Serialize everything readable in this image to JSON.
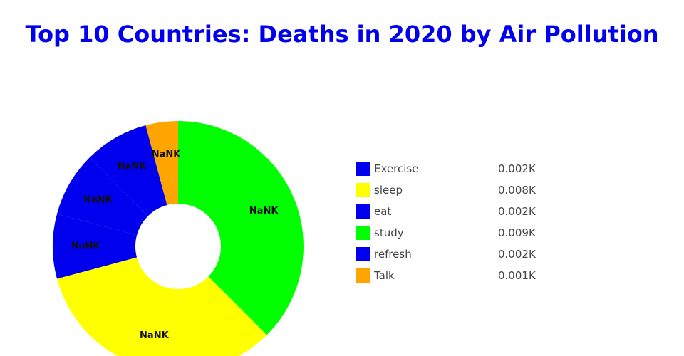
{
  "chart_data": {
    "type": "pie",
    "title": "Top 10 Countries: Deaths in 2020 by Air Pollution",
    "hole": true,
    "legend_position": "right",
    "slices": [
      {
        "label": "study",
        "value": 9,
        "display_value": "0.009K",
        "slice_text": "NaNK",
        "color": "#00ff00"
      },
      {
        "label": "sleep",
        "value": 8,
        "display_value": "0.008K",
        "slice_text": "NaNK",
        "color": "#ffff00"
      },
      {
        "label": "Exercise",
        "value": 2,
        "display_value": "0.002K",
        "slice_text": "NaNK",
        "color": "#0000ee"
      },
      {
        "label": "eat",
        "value": 2,
        "display_value": "0.002K",
        "slice_text": "NaNK",
        "color": "#0000ee"
      },
      {
        "label": "refresh",
        "value": 2,
        "display_value": "0.002K",
        "slice_text": "NaNK",
        "color": "#0000ee"
      },
      {
        "label": "Talk",
        "value": 1,
        "display_value": "0.001K",
        "slice_text": "NaNK",
        "color": "#ffa500"
      }
    ],
    "legend": [
      {
        "label": "Exercise",
        "value": "0.002K",
        "color": "#0000ee"
      },
      {
        "label": "sleep",
        "value": "0.008K",
        "color": "#ffff00"
      },
      {
        "label": "eat",
        "value": "0.002K",
        "color": "#0000ee"
      },
      {
        "label": "study",
        "value": "0.009K",
        "color": "#00ff00"
      },
      {
        "label": "refresh",
        "value": "0.002K",
        "color": "#0000ee"
      },
      {
        "label": "Talk",
        "value": "0.001K",
        "color": "#ffa500"
      }
    ]
  },
  "colors": {
    "title": "#0000ee",
    "label_text": "#111111",
    "legend_text": "#444444"
  }
}
